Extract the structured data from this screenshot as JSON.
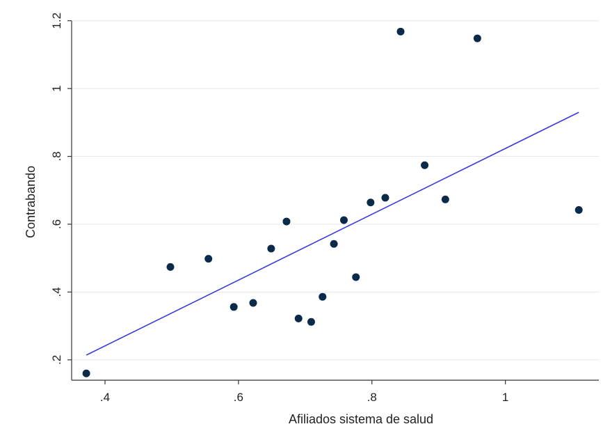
{
  "chart_data": {
    "type": "scatter",
    "xlabel": "Afiliados sistema de salud",
    "ylabel": "Contrabando",
    "xlim": [
      0.35,
      1.14
    ],
    "ylim": [
      0.14,
      1.22
    ],
    "xticks": [
      {
        "value": 0.4,
        "label": ".4"
      },
      {
        "value": 0.6,
        "label": ".6"
      },
      {
        "value": 0.8,
        "label": ".8"
      },
      {
        "value": 1.0,
        "label": "1"
      }
    ],
    "yticks": [
      {
        "value": 0.2,
        "label": ".2"
      },
      {
        "value": 0.4,
        "label": ".4"
      },
      {
        "value": 0.6,
        "label": ".6"
      },
      {
        "value": 0.8,
        "label": ".8"
      },
      {
        "value": 1.0,
        "label": "1"
      },
      {
        "value": 1.2,
        "label": "1.2"
      }
    ],
    "grid": true,
    "legend": "none",
    "series": [
      {
        "marker_color": "#0b2a4a",
        "points": [
          {
            "x": 0.372,
            "y": 0.16
          },
          {
            "x": 0.498,
            "y": 0.474
          },
          {
            "x": 0.555,
            "y": 0.498
          },
          {
            "x": 0.593,
            "y": 0.356
          },
          {
            "x": 0.622,
            "y": 0.368
          },
          {
            "x": 0.649,
            "y": 0.528
          },
          {
            "x": 0.672,
            "y": 0.608
          },
          {
            "x": 0.69,
            "y": 0.322
          },
          {
            "x": 0.709,
            "y": 0.312
          },
          {
            "x": 0.726,
            "y": 0.386
          },
          {
            "x": 0.743,
            "y": 0.542
          },
          {
            "x": 0.758,
            "y": 0.612
          },
          {
            "x": 0.776,
            "y": 0.444
          },
          {
            "x": 0.798,
            "y": 0.664
          },
          {
            "x": 0.82,
            "y": 0.678
          },
          {
            "x": 0.843,
            "y": 1.168
          },
          {
            "x": 0.879,
            "y": 0.774
          },
          {
            "x": 0.91,
            "y": 0.673
          },
          {
            "x": 0.958,
            "y": 1.148
          },
          {
            "x": 1.11,
            "y": 0.642
          }
        ]
      }
    ],
    "fit_line": {
      "color": "#3a3ad8",
      "x": [
        0.372,
        1.11
      ],
      "y": [
        0.214,
        0.93
      ]
    }
  }
}
